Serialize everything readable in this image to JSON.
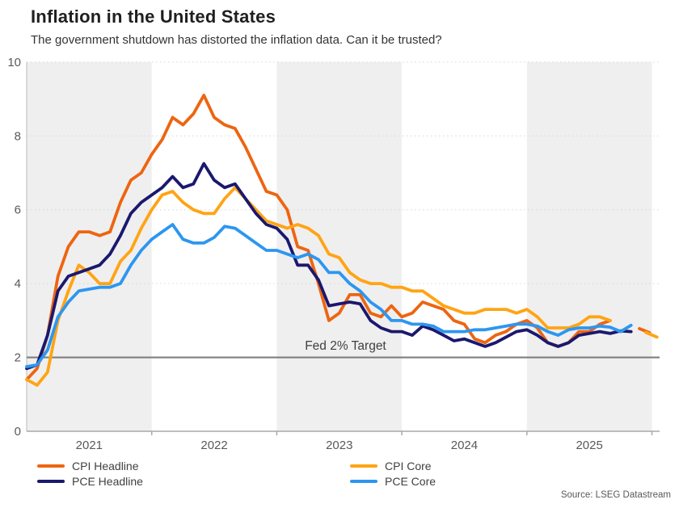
{
  "header": {
    "title": "Inflation in the United States",
    "subtitle": "The government shutdown has distorted the inflation data. Can it be trusted?"
  },
  "source": "Source: LSEG Datastream",
  "colors": {
    "cpi_headline": "#ED6511",
    "cpi_core": "#FFA414",
    "pce_headline": "#1B186E",
    "pce_core": "#2D96F0",
    "band_fill": "#EFEFEF",
    "gridline": "#D8D8D8",
    "reference_line": "#7F7F7F",
    "axis_line": "#A8A8A8",
    "axis_label": "#595959",
    "annotation_text": "#3F3F3F"
  },
  "legend": {
    "items": [
      {
        "label": "CPI Headline",
        "color": "#ED6511",
        "column": 0
      },
      {
        "label": "PCE Headline",
        "color": "#1B186E",
        "column": 0
      },
      {
        "label": "CPI Core",
        "color": "#FFA414",
        "column": 1
      },
      {
        "label": "PCE Core",
        "color": "#2D96F0",
        "column": 1
      }
    ]
  },
  "chart_data": {
    "type": "line",
    "title": "Inflation in the United States",
    "xlabel": "",
    "ylabel": "",
    "x_axis": {
      "unit": "year",
      "range": [
        2021.0,
        2026.06
      ],
      "tick_labels": [
        "2021",
        "2022",
        "2023",
        "2024",
        "2025"
      ],
      "tick_label_years": [
        2021,
        2022,
        2023,
        2024,
        2025
      ],
      "boundary_tick_years": [
        2022,
        2023,
        2024,
        2025,
        2026
      ],
      "shaded_band_years": [
        2021,
        2023,
        2025
      ]
    },
    "y_axis": {
      "range": [
        0,
        10
      ],
      "ticks": [
        0,
        2,
        4,
        6,
        8,
        10
      ],
      "grid": "dotted"
    },
    "reference_line": {
      "value": 2,
      "label": "Fed 2% Target",
      "label_x": 2023.55,
      "label_y": 2.21
    },
    "series": [
      {
        "name": "CPI Headline",
        "color": "#ED6511",
        "x_start": 2021.0,
        "x_step": 0.0833333,
        "values": [
          1.4,
          1.7,
          2.6,
          4.2,
          5.0,
          5.4,
          5.4,
          5.3,
          5.4,
          6.2,
          6.8,
          7.0,
          7.5,
          7.9,
          8.5,
          8.3,
          8.6,
          9.1,
          8.5,
          8.3,
          8.2,
          7.7,
          7.1,
          6.5,
          6.4,
          6.0,
          5.0,
          4.9,
          4.0,
          3.0,
          3.2,
          3.7,
          3.7,
          3.2,
          3.1,
          3.4,
          3.1,
          3.2,
          3.5,
          3.4,
          3.3,
          3.0,
          2.9,
          2.5,
          2.4,
          2.6,
          2.7,
          2.9,
          3.0,
          2.8,
          2.4,
          2.3,
          2.4,
          2.7,
          2.7,
          2.9,
          3.0
        ]
      },
      {
        "name": "CPI Core",
        "color": "#FFA414",
        "x_start": 2021.0,
        "x_step": 0.0833333,
        "values": [
          1.4,
          1.25,
          1.6,
          3.0,
          3.8,
          4.5,
          4.3,
          4.0,
          4.0,
          4.6,
          4.9,
          5.5,
          6.0,
          6.4,
          6.5,
          6.2,
          6.0,
          5.9,
          5.9,
          6.3,
          6.6,
          6.3,
          6.0,
          5.7,
          5.6,
          5.5,
          5.6,
          5.5,
          5.3,
          4.8,
          4.7,
          4.3,
          4.1,
          4.0,
          4.0,
          3.9,
          3.9,
          3.8,
          3.8,
          3.6,
          3.4,
          3.3,
          3.2,
          3.2,
          3.3,
          3.3,
          3.3,
          3.2,
          3.3,
          3.1,
          2.8,
          2.8,
          2.8,
          2.9,
          3.1,
          3.1,
          3.0
        ]
      },
      {
        "name": "PCE Headline",
        "color": "#1B186E",
        "x_start": 2021.0,
        "x_step": 0.0833333,
        "values": [
          1.7,
          1.8,
          2.6,
          3.8,
          4.2,
          4.3,
          4.4,
          4.5,
          4.8,
          5.3,
          5.9,
          6.2,
          6.4,
          6.6,
          6.9,
          6.6,
          6.7,
          7.25,
          6.8,
          6.6,
          6.7,
          6.3,
          5.9,
          5.6,
          5.5,
          5.2,
          4.5,
          4.5,
          4.1,
          3.4,
          3.45,
          3.5,
          3.45,
          3.0,
          2.8,
          2.7,
          2.7,
          2.6,
          2.85,
          2.75,
          2.6,
          2.45,
          2.5,
          2.4,
          2.3,
          2.4,
          2.55,
          2.7,
          2.75,
          2.6,
          2.4,
          2.3,
          2.4,
          2.6,
          2.65,
          2.7,
          2.65,
          2.72,
          2.7
        ]
      },
      {
        "name": "PCE Core",
        "color": "#2D96F0",
        "x_start": 2021.0,
        "x_step": 0.0833333,
        "values": [
          1.75,
          1.8,
          2.2,
          3.1,
          3.5,
          3.8,
          3.85,
          3.9,
          3.9,
          4.0,
          4.5,
          4.9,
          5.2,
          5.4,
          5.6,
          5.2,
          5.1,
          5.1,
          5.25,
          5.55,
          5.5,
          5.3,
          5.1,
          4.9,
          4.9,
          4.8,
          4.7,
          4.8,
          4.65,
          4.3,
          4.3,
          4.0,
          3.8,
          3.5,
          3.3,
          3.0,
          3.0,
          2.9,
          2.9,
          2.85,
          2.7,
          2.7,
          2.7,
          2.75,
          2.75,
          2.8,
          2.85,
          2.9,
          2.9,
          2.85,
          2.7,
          2.6,
          2.75,
          2.8,
          2.8,
          2.85,
          2.82,
          2.7,
          2.87
        ]
      }
    ],
    "detached_segments": [
      {
        "series": "CPI Headline",
        "color": "#ED6511",
        "points": [
          [
            2025.9,
            2.78
          ],
          [
            2025.98,
            2.67
          ]
        ]
      },
      {
        "series": "CPI Core",
        "color": "#FFA414",
        "points": [
          [
            2025.95,
            2.68
          ],
          [
            2026.04,
            2.55
          ]
        ]
      }
    ],
    "legend_position": "bottom"
  }
}
